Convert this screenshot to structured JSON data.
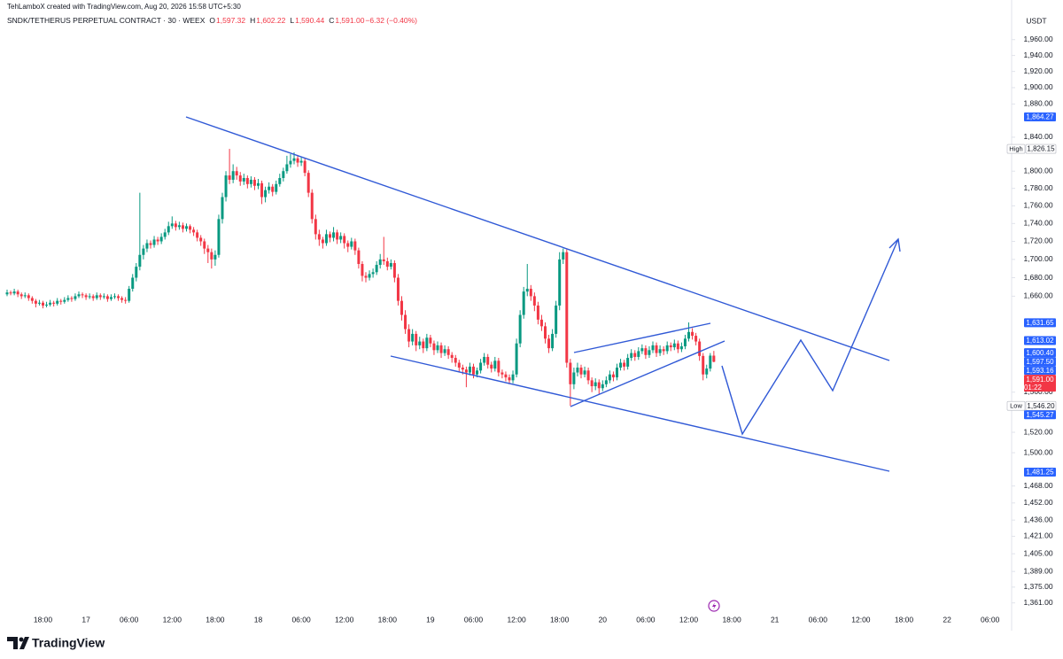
{
  "header": {
    "watermark": "TehLamboX created with TradingView.com, Aug 20, 2026 15:58 UTC+5:30",
    "symbol": "SNDK/TETHERUS PERPETUAL CONTRACT · 30 · WEEX",
    "items": [
      "O",
      "1,597.32",
      "H",
      "1,602.22",
      "L",
      "1,590.44",
      "C",
      "1,591.00",
      "−6.32 (−0.40%)"
    ],
    "currency": "USDT"
  },
  "footer": {
    "brand": "TradingView"
  },
  "chart_data": {
    "type": "candlestick",
    "log_scale": true,
    "grid": false,
    "up_color": "#089981",
    "down_color": "#f23645",
    "xlim": [
      0,
      280
    ],
    "ylim": [
      1346,
      1988
    ],
    "xticks": [
      {
        "value": 10,
        "label": "18:00"
      },
      {
        "value": 22,
        "label": "17"
      },
      {
        "value": 34,
        "label": "06:00"
      },
      {
        "value": 46,
        "label": "12:00"
      },
      {
        "value": 58,
        "label": "18:00"
      },
      {
        "value": 70,
        "label": "18"
      },
      {
        "value": 82,
        "label": "06:00"
      },
      {
        "value": 94,
        "label": "12:00"
      },
      {
        "value": 106,
        "label": "18:00"
      },
      {
        "value": 118,
        "label": "19"
      },
      {
        "value": 130,
        "label": "06:00"
      },
      {
        "value": 142,
        "label": "12:00"
      },
      {
        "value": 154,
        "label": "18:00"
      },
      {
        "value": 166,
        "label": "20"
      },
      {
        "value": 178,
        "label": "06:00"
      },
      {
        "value": 190,
        "label": "12:00"
      },
      {
        "value": 202,
        "label": "18:00"
      },
      {
        "value": 214,
        "label": "21"
      },
      {
        "value": 226,
        "label": "06:00"
      },
      {
        "value": 238,
        "label": "12:00"
      },
      {
        "value": 250,
        "label": "18:00"
      },
      {
        "value": 262,
        "label": "22"
      },
      {
        "value": 274,
        "label": "06:00"
      }
    ],
    "yticks": [
      {
        "value": 1960,
        "label": "1,960.00"
      },
      {
        "value": 1940,
        "label": "1,940.00"
      },
      {
        "value": 1920,
        "label": "1,920.00"
      },
      {
        "value": 1900,
        "label": "1,900.00"
      },
      {
        "value": 1880,
        "label": "1,880.00"
      },
      {
        "value": 1840,
        "label": "1,840.00"
      },
      {
        "value": 1800,
        "label": "1,800.00"
      },
      {
        "value": 1780,
        "label": "1,780.00"
      },
      {
        "value": 1760,
        "label": "1,760.00"
      },
      {
        "value": 1740,
        "label": "1,740.00"
      },
      {
        "value": 1720,
        "label": "1,720.00"
      },
      {
        "value": 1700,
        "label": "1,700.00"
      },
      {
        "value": 1680,
        "label": "1,680.00"
      },
      {
        "value": 1660,
        "label": "1,660.00"
      },
      {
        "value": 1560,
        "label": "1,560.00"
      },
      {
        "value": 1520,
        "label": "1,520.00"
      },
      {
        "value": 1500,
        "label": "1,500.00"
      },
      {
        "value": 1468,
        "label": "1,468.00"
      },
      {
        "value": 1452,
        "label": "1,452.00"
      },
      {
        "value": 1436,
        "label": "1,436.00"
      },
      {
        "value": 1421,
        "label": "1,421.00"
      },
      {
        "value": 1405,
        "label": "1,405.00"
      },
      {
        "value": 1389,
        "label": "1,389.00"
      },
      {
        "value": 1375,
        "label": "1,375.00"
      },
      {
        "value": 1361,
        "label": "1,361.00"
      }
    ],
    "price_labels": [
      {
        "value": 1864.27,
        "label": "1,864.27",
        "color": "#2962ff"
      },
      {
        "value": 1826.15,
        "label": "1,826.15",
        "tag": "High"
      },
      {
        "value": 1631.65,
        "label": "1,631.65",
        "color": "#2962ff"
      },
      {
        "value": 1613.02,
        "label": "1,613.02",
        "color": "#2962ff"
      },
      {
        "value": 1600.4,
        "label": "1,600.40",
        "color": "#2962ff"
      },
      {
        "value": 1597.5,
        "label": "1,597.50",
        "color": "#2962ff"
      },
      {
        "value": 1593.16,
        "label": "1,593.16",
        "color": "#2962ff"
      },
      {
        "value": 1591.0,
        "label": "1,591.00",
        "color": "#f23645",
        "sub": "01:22"
      },
      {
        "value": 1546.2,
        "label": "1,546.20",
        "tag": "Low"
      },
      {
        "value": 1545.27,
        "label": "1,545.27",
        "color": "#2962ff"
      },
      {
        "value": 1481.25,
        "label": "1,481.25",
        "color": "#2962ff"
      }
    ],
    "ohlc": [
      [
        1662,
        1667,
        1660,
        1664
      ],
      [
        1664,
        1666,
        1661,
        1663
      ],
      [
        1663,
        1668,
        1661,
        1665
      ],
      [
        1665,
        1667,
        1659,
        1662
      ],
      [
        1662,
        1664,
        1657,
        1660
      ],
      [
        1660,
        1664,
        1658,
        1661
      ],
      [
        1661,
        1663,
        1655,
        1658
      ],
      [
        1658,
        1660,
        1652,
        1655
      ],
      [
        1655,
        1657,
        1648,
        1652
      ],
      [
        1652,
        1656,
        1650,
        1653
      ],
      [
        1653,
        1655,
        1647,
        1650
      ],
      [
        1650,
        1654,
        1648,
        1651
      ],
      [
        1651,
        1656,
        1649,
        1653
      ],
      [
        1653,
        1655,
        1649,
        1652
      ],
      [
        1652,
        1658,
        1650,
        1655
      ],
      [
        1655,
        1657,
        1651,
        1654
      ],
      [
        1654,
        1659,
        1652,
        1656
      ],
      [
        1656,
        1661,
        1654,
        1658
      ],
      [
        1658,
        1660,
        1654,
        1657
      ],
      [
        1657,
        1663,
        1655,
        1660
      ],
      [
        1660,
        1665,
        1658,
        1662
      ],
      [
        1662,
        1664,
        1658,
        1661
      ],
      [
        1661,
        1663,
        1656,
        1659
      ],
      [
        1659,
        1663,
        1657,
        1660
      ],
      [
        1660,
        1662,
        1655,
        1658
      ],
      [
        1658,
        1664,
        1656,
        1661
      ],
      [
        1661,
        1663,
        1656,
        1659
      ],
      [
        1659,
        1663,
        1657,
        1660
      ],
      [
        1660,
        1662,
        1654,
        1657
      ],
      [
        1657,
        1662,
        1655,
        1659
      ],
      [
        1659,
        1663,
        1657,
        1660
      ],
      [
        1660,
        1662,
        1655,
        1658
      ],
      [
        1658,
        1660,
        1653,
        1656
      ],
      [
        1656,
        1659,
        1652,
        1655
      ],
      [
        1655,
        1671,
        1653,
        1668
      ],
      [
        1668,
        1684,
        1665,
        1680
      ],
      [
        1680,
        1696,
        1676,
        1692
      ],
      [
        1692,
        1775,
        1688,
        1705
      ],
      [
        1705,
        1716,
        1700,
        1712
      ],
      [
        1712,
        1722,
        1708,
        1718
      ],
      [
        1718,
        1721,
        1712,
        1716
      ],
      [
        1716,
        1726,
        1713,
        1722
      ],
      [
        1722,
        1725,
        1716,
        1720
      ],
      [
        1720,
        1729,
        1717,
        1725
      ],
      [
        1725,
        1734,
        1722,
        1730
      ],
      [
        1730,
        1742,
        1727,
        1737
      ],
      [
        1737,
        1748,
        1734,
        1740
      ],
      [
        1740,
        1743,
        1732,
        1736
      ],
      [
        1736,
        1742,
        1733,
        1738
      ],
      [
        1738,
        1741,
        1730,
        1734
      ],
      [
        1734,
        1740,
        1731,
        1737
      ],
      [
        1737,
        1739,
        1729,
        1733
      ],
      [
        1733,
        1736,
        1726,
        1730
      ],
      [
        1730,
        1733,
        1720,
        1724
      ],
      [
        1724,
        1727,
        1715,
        1720
      ],
      [
        1720,
        1723,
        1706,
        1712
      ],
      [
        1712,
        1716,
        1696,
        1708
      ],
      [
        1708,
        1712,
        1690,
        1700
      ],
      [
        1700,
        1710,
        1693,
        1705
      ],
      [
        1705,
        1750,
        1702,
        1745
      ],
      [
        1745,
        1775,
        1740,
        1770
      ],
      [
        1770,
        1800,
        1765,
        1795
      ],
      [
        1795,
        1826.15,
        1785,
        1790
      ],
      [
        1790,
        1808,
        1786,
        1800
      ],
      [
        1800,
        1805,
        1790,
        1795
      ],
      [
        1795,
        1799,
        1783,
        1788
      ],
      [
        1788,
        1797,
        1784,
        1792
      ],
      [
        1792,
        1795,
        1780,
        1785
      ],
      [
        1785,
        1794,
        1781,
        1790
      ],
      [
        1790,
        1793,
        1778,
        1783
      ],
      [
        1783,
        1791,
        1779,
        1786
      ],
      [
        1786,
        1789,
        1762,
        1770
      ],
      [
        1770,
        1782,
        1764,
        1778
      ],
      [
        1778,
        1787,
        1774,
        1782
      ],
      [
        1782,
        1785,
        1771,
        1776
      ],
      [
        1776,
        1789,
        1773,
        1785
      ],
      [
        1785,
        1797,
        1782,
        1792
      ],
      [
        1792,
        1804,
        1788,
        1800
      ],
      [
        1800,
        1818,
        1797,
        1808
      ],
      [
        1808,
        1820,
        1804,
        1812
      ],
      [
        1812,
        1822,
        1808,
        1815
      ],
      [
        1815,
        1819,
        1805,
        1810
      ],
      [
        1810,
        1816,
        1806,
        1812
      ],
      [
        1812,
        1815,
        1794,
        1798
      ],
      [
        1798,
        1801,
        1770,
        1775
      ],
      [
        1775,
        1779,
        1740,
        1745
      ],
      [
        1745,
        1750,
        1722,
        1728
      ],
      [
        1728,
        1733,
        1715,
        1722
      ],
      [
        1722,
        1725,
        1712,
        1718
      ],
      [
        1718,
        1733,
        1715,
        1728
      ],
      [
        1728,
        1731,
        1719,
        1724
      ],
      [
        1724,
        1736,
        1720,
        1730
      ],
      [
        1730,
        1733,
        1717,
        1722
      ],
      [
        1722,
        1730,
        1718,
        1726
      ],
      [
        1726,
        1729,
        1712,
        1718
      ],
      [
        1718,
        1721,
        1708,
        1714
      ],
      [
        1714,
        1724,
        1711,
        1720
      ],
      [
        1720,
        1723,
        1705,
        1710
      ],
      [
        1710,
        1713,
        1690,
        1695
      ],
      [
        1695,
        1698,
        1676,
        1682
      ],
      [
        1682,
        1686,
        1675,
        1680
      ],
      [
        1680,
        1688,
        1677,
        1684
      ],
      [
        1684,
        1690,
        1680,
        1686
      ],
      [
        1686,
        1698,
        1683,
        1694
      ],
      [
        1694,
        1706,
        1690,
        1700
      ],
      [
        1700,
        1725,
        1694,
        1698
      ],
      [
        1698,
        1702,
        1688,
        1692
      ],
      [
        1692,
        1700,
        1689,
        1696
      ],
      [
        1696,
        1699,
        1675,
        1680
      ],
      [
        1680,
        1684,
        1650,
        1655
      ],
      [
        1655,
        1660,
        1634,
        1640
      ],
      [
        1640,
        1645,
        1620,
        1625
      ],
      [
        1625,
        1630,
        1606,
        1612
      ],
      [
        1612,
        1625,
        1608,
        1620
      ],
      [
        1620,
        1623,
        1602,
        1608
      ],
      [
        1608,
        1617,
        1604,
        1612
      ],
      [
        1612,
        1615,
        1600,
        1605
      ],
      [
        1605,
        1620,
        1602,
        1616
      ],
      [
        1616,
        1619,
        1606,
        1610
      ],
      [
        1610,
        1613,
        1598,
        1603
      ],
      [
        1603,
        1612,
        1600,
        1608
      ],
      [
        1608,
        1611,
        1595,
        1600
      ],
      [
        1600,
        1608,
        1597,
        1604
      ],
      [
        1604,
        1607,
        1594,
        1598
      ],
      [
        1598,
        1601,
        1590,
        1595
      ],
      [
        1595,
        1598,
        1586,
        1590
      ],
      [
        1590,
        1593,
        1580,
        1585
      ],
      [
        1585,
        1588,
        1578,
        1583
      ],
      [
        1583,
        1586,
        1565,
        1580
      ],
      [
        1580,
        1590,
        1577,
        1586
      ],
      [
        1586,
        1589,
        1574,
        1578
      ],
      [
        1578,
        1585,
        1575,
        1582
      ],
      [
        1582,
        1594,
        1579,
        1590
      ],
      [
        1590,
        1600,
        1587,
        1596
      ],
      [
        1596,
        1599,
        1584,
        1588
      ],
      [
        1588,
        1591,
        1580,
        1584
      ],
      [
        1584,
        1596,
        1581,
        1592
      ],
      [
        1592,
        1595,
        1576,
        1580
      ],
      [
        1580,
        1583,
        1574,
        1578
      ],
      [
        1578,
        1581,
        1571,
        1575
      ],
      [
        1575,
        1578,
        1568,
        1572
      ],
      [
        1572,
        1582,
        1569,
        1578
      ],
      [
        1578,
        1615,
        1575,
        1610
      ],
      [
        1610,
        1645,
        1606,
        1640
      ],
      [
        1640,
        1670,
        1636,
        1665
      ],
      [
        1665,
        1695,
        1660,
        1668
      ],
      [
        1668,
        1672,
        1655,
        1660
      ],
      [
        1660,
        1664,
        1644,
        1650
      ],
      [
        1650,
        1654,
        1630,
        1635
      ],
      [
        1635,
        1640,
        1623,
        1628
      ],
      [
        1628,
        1632,
        1610,
        1615
      ],
      [
        1615,
        1619,
        1600,
        1605
      ],
      [
        1605,
        1625,
        1602,
        1620
      ],
      [
        1620,
        1655,
        1616,
        1650
      ],
      [
        1650,
        1708,
        1645,
        1700
      ],
      [
        1700,
        1712,
        1695,
        1708
      ],
      [
        1708,
        1711,
        1585,
        1590
      ],
      [
        1590,
        1594,
        1546.2,
        1568
      ],
      [
        1568,
        1585,
        1563,
        1580
      ],
      [
        1580,
        1590,
        1576,
        1585
      ],
      [
        1585,
        1588,
        1574,
        1578
      ],
      [
        1578,
        1586,
        1575,
        1582
      ],
      [
        1582,
        1585,
        1568,
        1572
      ],
      [
        1572,
        1575,
        1560,
        1566
      ],
      [
        1566,
        1574,
        1562,
        1570
      ],
      [
        1570,
        1573,
        1558,
        1564
      ],
      [
        1564,
        1572,
        1561,
        1568
      ],
      [
        1568,
        1576,
        1565,
        1572
      ],
      [
        1572,
        1582,
        1569,
        1578
      ],
      [
        1578,
        1581,
        1571,
        1575
      ],
      [
        1575,
        1589,
        1572,
        1585
      ],
      [
        1585,
        1594,
        1582,
        1590
      ],
      [
        1590,
        1593,
        1582,
        1586
      ],
      [
        1586,
        1599,
        1583,
        1595
      ],
      [
        1595,
        1604,
        1592,
        1600
      ],
      [
        1600,
        1603,
        1592,
        1596
      ],
      [
        1596,
        1606,
        1593,
        1602
      ],
      [
        1602,
        1609,
        1599,
        1605
      ],
      [
        1605,
        1608,
        1594,
        1598
      ],
      [
        1598,
        1607,
        1595,
        1603
      ],
      [
        1603,
        1612,
        1600,
        1608
      ],
      [
        1608,
        1611,
        1596,
        1600
      ],
      [
        1600,
        1608,
        1597,
        1604
      ],
      [
        1604,
        1607,
        1598,
        1602
      ],
      [
        1602,
        1612,
        1599,
        1608
      ],
      [
        1608,
        1611,
        1602,
        1606
      ],
      [
        1606,
        1614,
        1603,
        1610
      ],
      [
        1610,
        1613,
        1600,
        1604
      ],
      [
        1604,
        1611,
        1601,
        1607
      ],
      [
        1607,
        1619,
        1604,
        1615
      ],
      [
        1615,
        1632,
        1612,
        1622
      ],
      [
        1622,
        1626,
        1614,
        1618
      ],
      [
        1618,
        1621,
        1608,
        1612
      ],
      [
        1612,
        1615,
        1592,
        1597
      ],
      [
        1597,
        1600,
        1572,
        1578
      ],
      [
        1578,
        1588,
        1574,
        1584
      ],
      [
        1584,
        1600,
        1581,
        1597.32
      ],
      [
        1597.32,
        1602.22,
        1590.44,
        1591
      ]
    ]
  }
}
